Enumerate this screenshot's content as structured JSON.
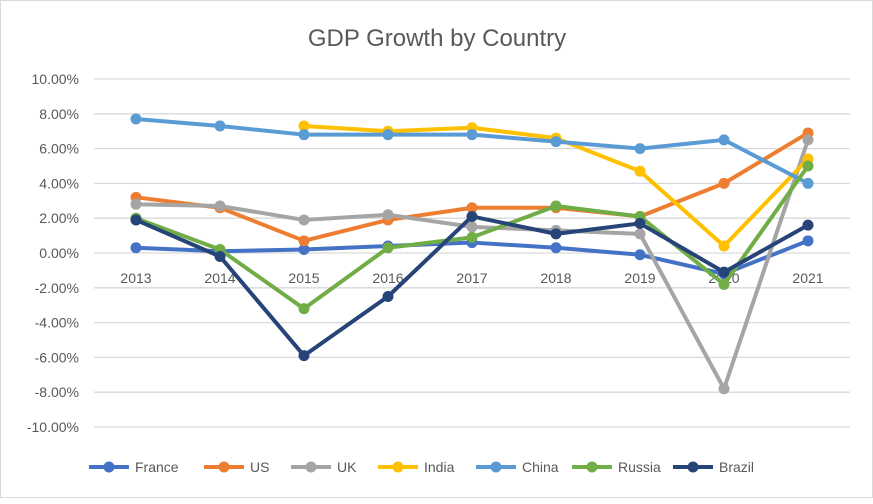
{
  "chart_data": {
    "type": "line",
    "title": "GDP Growth by Country",
    "xlabel": "",
    "ylabel": "",
    "categories": [
      "2013",
      "2014",
      "2015",
      "2016",
      "2017",
      "2018",
      "2019",
      "2020",
      "2021"
    ],
    "ylim": [
      -10,
      10
    ],
    "ytick_step": 2,
    "ytick_labels": [
      "10.00%",
      "8.00%",
      "6.00%",
      "4.00%",
      "2.00%",
      "0.00%",
      "-2.00%",
      "-4.00%",
      "-6.00%",
      "-8.00%",
      "-10.00%"
    ],
    "grid": true,
    "legend": "bottom",
    "series": [
      {
        "name": "France",
        "color": "#4472C4",
        "values": [
          0.3,
          0.1,
          0.2,
          0.4,
          0.6,
          0.3,
          -0.1,
          -1.2,
          0.7
        ]
      },
      {
        "name": "US",
        "color": "#ED7D31",
        "values": [
          3.2,
          2.6,
          0.7,
          1.9,
          2.6,
          2.6,
          2.1,
          4.0,
          6.9
        ]
      },
      {
        "name": "UK",
        "color": "#A5A5A5",
        "values": [
          2.8,
          2.7,
          1.9,
          2.2,
          1.5,
          1.3,
          1.1,
          -7.8,
          6.5
        ]
      },
      {
        "name": "India",
        "color": "#FFC000",
        "values": [
          null,
          null,
          7.3,
          7.0,
          7.2,
          6.6,
          4.7,
          0.4,
          5.4
        ]
      },
      {
        "name": "China",
        "color": "#5B9BD5",
        "values": [
          7.7,
          7.3,
          6.8,
          6.8,
          6.8,
          6.4,
          6.0,
          6.5,
          4.0
        ]
      },
      {
        "name": "Russia",
        "color": "#70AD47",
        "values": [
          2.0,
          0.2,
          -3.2,
          0.3,
          0.9,
          2.7,
          2.1,
          -1.8,
          5.0
        ]
      },
      {
        "name": "Brazil",
        "color": "#264478",
        "values": [
          1.9,
          -0.2,
          -5.9,
          -2.5,
          2.1,
          1.1,
          1.7,
          -1.1,
          1.6
        ]
      }
    ]
  }
}
